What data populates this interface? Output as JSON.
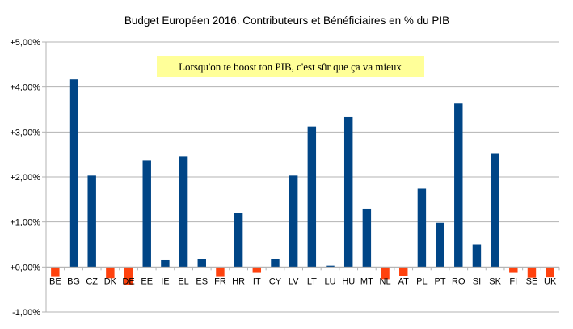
{
  "chart_data": {
    "type": "bar",
    "title": "Budget Européen 2016. Contributeurs et Bénéficiaires en % du PIB",
    "xlabel": "",
    "ylabel": "",
    "ylim": [
      -1,
      5
    ],
    "yticks": [
      -1,
      0,
      1,
      2,
      3,
      4,
      5
    ],
    "ytick_labels": [
      "-1,00%",
      "+0,00%",
      "+1,00%",
      "+2,00%",
      "+3,00%",
      "+4,00%",
      "+5,00%"
    ],
    "grid": true,
    "legend": "none",
    "categories": [
      "BE",
      "BG",
      "CZ",
      "DK",
      "DE",
      "EE",
      "IE",
      "EL",
      "ES",
      "FR",
      "HR",
      "IT",
      "CY",
      "LV",
      "LT",
      "LU",
      "HU",
      "MT",
      "NL",
      "AT",
      "PL",
      "PT",
      "RO",
      "SI",
      "SK",
      "FI",
      "SE",
      "UK"
    ],
    "values": [
      -0.22,
      4.17,
      2.03,
      -0.25,
      -0.4,
      2.37,
      0.15,
      2.46,
      0.18,
      -0.22,
      1.2,
      -0.13,
      0.17,
      2.03,
      3.12,
      0.03,
      3.33,
      1.3,
      -0.27,
      -0.2,
      1.74,
      0.98,
      3.63,
      0.5,
      2.53,
      -0.13,
      -0.24,
      -0.23
    ],
    "colors": {
      "positive": "#004586",
      "negative": "#ff420e",
      "grid": "#b3b3b3",
      "annotation_bg": "#ffff99"
    },
    "annotation": "Lorsqu'on te boost ton PIB, c'est sûr que ça va mieux"
  }
}
